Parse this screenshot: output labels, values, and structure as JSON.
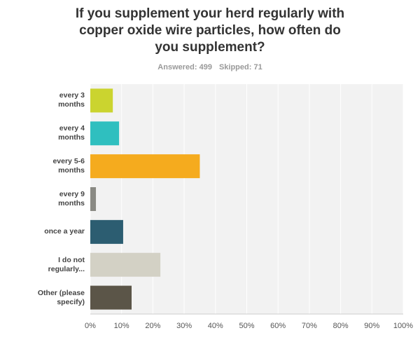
{
  "chart_data": {
    "type": "hbar",
    "title": "If you supplement your herd regularly with copper oxide wire particles, how often do you supplement?",
    "answered": "Answered: 499",
    "skipped": "Skipped: 71",
    "categories": [
      "every 3 months",
      "every 4 months",
      "every 5-6 months",
      "every 9 months",
      "once a year",
      "I do not regularly...",
      "Other (please specify)"
    ],
    "values": [
      7.2,
      9.2,
      35,
      1.8,
      10.5,
      22.4,
      13.2
    ],
    "colors": [
      "#cbd42f",
      "#2fbfbf",
      "#f5ab1e",
      "#8a8a84",
      "#2c5d71",
      "#d3d1c5",
      "#5b5548"
    ],
    "xlim": [
      0,
      100
    ],
    "xticks": [
      {
        "value": 0,
        "label": "0%"
      },
      {
        "value": 10,
        "label": "10%"
      },
      {
        "value": 20,
        "label": "20%"
      },
      {
        "value": 30,
        "label": "30%"
      },
      {
        "value": 40,
        "label": "40%"
      },
      {
        "value": 50,
        "label": "50%"
      },
      {
        "value": 60,
        "label": "60%"
      },
      {
        "value": 70,
        "label": "70%"
      },
      {
        "value": 80,
        "label": "80%"
      },
      {
        "value": 90,
        "label": "90%"
      },
      {
        "value": 100,
        "label": "100%"
      }
    ],
    "grid": true
  }
}
